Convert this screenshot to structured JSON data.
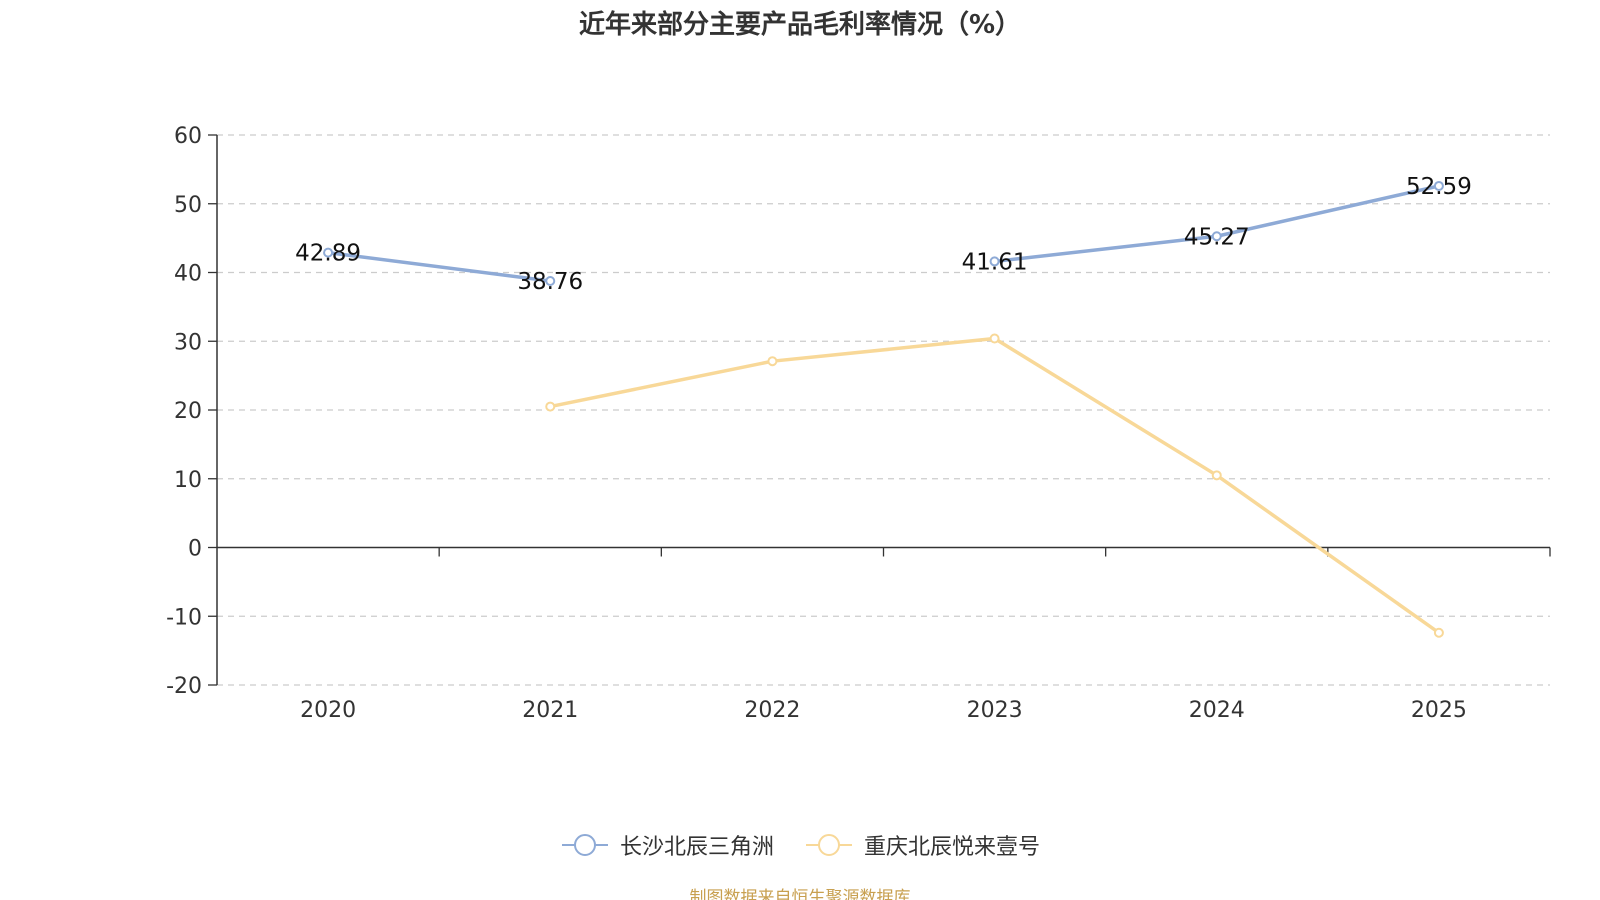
{
  "chart_data": {
    "type": "line",
    "title": "近年来部分主要产品毛利率情况（%）",
    "categories": [
      "2020",
      "2021",
      "2022",
      "2023",
      "2024",
      "2025"
    ],
    "ylim": [
      -20,
      60
    ],
    "yticks": [
      -20,
      -10,
      0,
      10,
      20,
      30,
      40,
      50,
      60
    ],
    "ytick_labels": [
      "-20",
      "-10",
      "0",
      "10",
      "20",
      "30",
      "40",
      "50",
      "60"
    ],
    "grid": true,
    "legend_position": "bottom",
    "series": [
      {
        "name": "长沙北辰三角洲",
        "values": [
          42.89,
          38.76,
          null,
          41.61,
          45.27,
          52.59
        ],
        "labels": [
          "42.89",
          "38.76",
          null,
          "41.61",
          "45.27",
          "52.59"
        ],
        "show_labels": true,
        "color": "#8eaad6"
      },
      {
        "name": "重庆北辰悦来壹号",
        "values": [
          null,
          20.5,
          27.1,
          30.4,
          10.5,
          -12.4
        ],
        "labels": [
          null,
          null,
          null,
          null,
          null,
          null
        ],
        "show_labels": false,
        "color": "#f8d898"
      }
    ]
  },
  "source_note": "制图数据来自恒生聚源数据库"
}
